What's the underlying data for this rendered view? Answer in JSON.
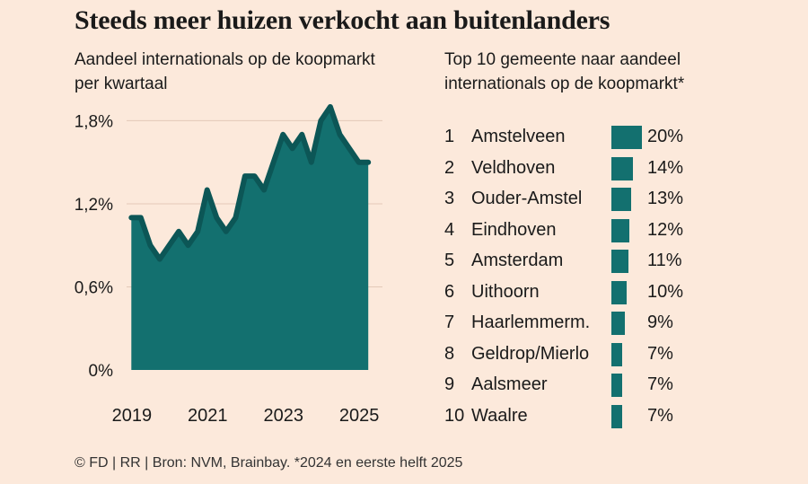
{
  "title": "Steeds meer huizen verkocht aan buitenlanders",
  "left_subtitle": "Aandeel internationals op de koopmarkt per kwartaal",
  "right_subtitle": "Top 10 gemeente naar aandeel internationals op de koopmarkt*",
  "footer": "© FD | RR | Bron: NVM, Brainbay. *2024 en eerste helft 2025",
  "colors": {
    "accent": "#13706f",
    "line": "#0c5656",
    "background": "#fce9db",
    "grid": "#e3c9b8"
  },
  "chart_data": [
    {
      "type": "area",
      "yticks": [
        "0%",
        "0,6%",
        "1,2%",
        "1,8%"
      ],
      "ytick_values": [
        0,
        0.6,
        1.2,
        1.8
      ],
      "ylim": [
        0,
        1.9
      ],
      "xticks": [
        "2019",
        "2021",
        "2023",
        "2025"
      ],
      "xtick_values": [
        2019.125,
        2021.125,
        2023.125,
        2025.125
      ],
      "grid": true,
      "x": [
        2018.875,
        2019.125,
        2019.375,
        2019.625,
        2019.875,
        2020.125,
        2020.375,
        2020.625,
        2020.875,
        2021.125,
        2021.375,
        2021.625,
        2021.875,
        2022.125,
        2022.375,
        2022.625,
        2022.875,
        2023.125,
        2023.375,
        2023.625,
        2023.875,
        2024.125,
        2024.375,
        2024.625,
        2024.875,
        2025.125
      ],
      "values": [
        1.1,
        1.1,
        0.9,
        0.8,
        0.9,
        1.0,
        0.9,
        1.0,
        1.3,
        1.1,
        1.0,
        1.1,
        1.4,
        1.4,
        1.3,
        1.5,
        1.7,
        1.6,
        1.7,
        1.5,
        1.8,
        1.9,
        1.7,
        1.6,
        1.5,
        1.5
      ]
    },
    {
      "type": "bar",
      "orientation": "horizontal",
      "ranks": [
        "1",
        "2",
        "3",
        "4",
        "5",
        "6",
        "7",
        "8",
        "9",
        "10"
      ],
      "categories": [
        "Amstelveen",
        "Veldhoven",
        "Ouder-Amstel",
        "Eindhoven",
        "Amsterdam",
        "Uithoorn",
        "Haarlemmerm.",
        "Geldrop/Mierlo",
        "Aalsmeer",
        "Waalre"
      ],
      "values": [
        20,
        14,
        13,
        12,
        11,
        10,
        9,
        7,
        7,
        7
      ],
      "labels": [
        "20%",
        "14%",
        "13%",
        "12%",
        "11%",
        "10%",
        "9%",
        "7%",
        "7%",
        "7%"
      ]
    }
  ]
}
